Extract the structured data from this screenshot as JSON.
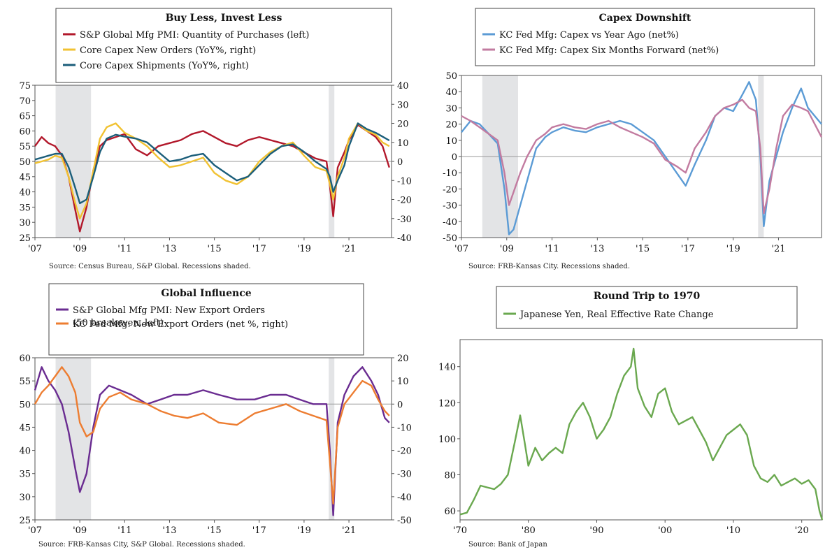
{
  "chart_data": [
    {
      "type": "line",
      "title": "Buy Less, Invest Less",
      "source": "Source: Census Bureau, S&P Global. Recessions shaded.",
      "x_ticks": [
        "'07",
        "'09",
        "'11",
        "'13",
        "'15",
        "'17",
        "'19",
        "'21"
      ],
      "x_tick_values": [
        2007,
        2009,
        2011,
        2013,
        2015,
        2017,
        2019,
        2021
      ],
      "xlim": [
        2007,
        2022.9
      ],
      "ylim_left": [
        25,
        75
      ],
      "yticks_left": [
        "75",
        "70",
        "65",
        "60",
        "55",
        "50",
        "45",
        "40",
        "35",
        "30",
        "25"
      ],
      "yticks_left_values": [
        75,
        70,
        65,
        60,
        55,
        50,
        45,
        40,
        35,
        30,
        25
      ],
      "ylim_right": [
        -40,
        40
      ],
      "yticks_right": [
        "40",
        "30",
        "20",
        "10",
        "0",
        "-10",
        "-20",
        "-30",
        "-40"
      ],
      "yticks_right_values": [
        40,
        30,
        20,
        10,
        0,
        -10,
        -20,
        -30,
        -40
      ],
      "zero_line_right": 0,
      "recessions": [
        [
          2007.92,
          2009.5
        ],
        [
          2020.1,
          2020.35
        ]
      ],
      "series": [
        {
          "name": "S&P Global Mfg PMI: Quantity of Purchases (left)",
          "axis": "left",
          "color": "#b2182b",
          "x": [
            2007,
            2007.3,
            2007.6,
            2007.9,
            2008.2,
            2008.5,
            2008.8,
            2009.0,
            2009.3,
            2009.6,
            2009.9,
            2010.2,
            2010.6,
            2011.0,
            2011.5,
            2012.0,
            2012.5,
            2013.0,
            2013.5,
            2014.0,
            2014.5,
            2015.0,
            2015.5,
            2016.0,
            2016.5,
            2017.0,
            2017.5,
            2018.0,
            2018.5,
            2019.0,
            2019.5,
            2020.0,
            2020.15,
            2020.3,
            2020.5,
            2020.8,
            2021.0,
            2021.4,
            2021.8,
            2022.2,
            2022.5,
            2022.8
          ],
          "values": [
            55,
            58,
            56,
            55,
            52,
            45,
            34,
            27,
            35,
            47,
            55,
            57,
            58,
            59,
            54,
            52,
            55,
            56,
            57,
            59,
            60,
            58,
            56,
            55,
            57,
            58,
            57,
            56,
            55,
            53,
            51,
            50,
            42,
            32,
            48,
            53,
            57,
            62,
            60,
            58,
            55,
            48
          ]
        },
        {
          "name": "Core Capex New Orders (YoY%, right)",
          "axis": "right",
          "color": "#f1c232",
          "x": [
            2007,
            2007.3,
            2007.6,
            2007.9,
            2008.2,
            2008.5,
            2008.8,
            2009.0,
            2009.3,
            2009.6,
            2009.9,
            2010.2,
            2010.6,
            2011.0,
            2011.5,
            2012.0,
            2012.5,
            2013.0,
            2013.5,
            2014.0,
            2014.5,
            2015.0,
            2015.5,
            2016.0,
            2016.5,
            2017.0,
            2017.5,
            2018.0,
            2018.5,
            2019.0,
            2019.5,
            2020.0,
            2020.15,
            2020.3,
            2020.5,
            2020.8,
            2021.0,
            2021.4,
            2021.8,
            2022.2,
            2022.5,
            2022.8
          ],
          "values": [
            -1,
            0,
            1,
            3,
            2,
            -8,
            -22,
            -30,
            -22,
            -5,
            12,
            18,
            20,
            15,
            12,
            8,
            2,
            -3,
            -2,
            0,
            2,
            -6,
            -10,
            -12,
            -8,
            0,
            5,
            8,
            10,
            3,
            -3,
            -5,
            -12,
            -20,
            -8,
            2,
            12,
            20,
            16,
            14,
            10,
            8
          ]
        },
        {
          "name": "Core Capex Shipments (YoY%, right)",
          "axis": "right",
          "color": "#1b5e7a",
          "x": [
            2007,
            2007.3,
            2007.6,
            2007.9,
            2008.2,
            2008.5,
            2008.8,
            2009.0,
            2009.3,
            2009.6,
            2009.9,
            2010.2,
            2010.6,
            2011.0,
            2011.5,
            2012.0,
            2012.5,
            2013.0,
            2013.5,
            2014.0,
            2014.5,
            2015.0,
            2015.5,
            2016.0,
            2016.5,
            2017.0,
            2017.5,
            2018.0,
            2018.5,
            2019.0,
            2019.5,
            2020.0,
            2020.15,
            2020.3,
            2020.5,
            2020.8,
            2021.0,
            2021.4,
            2021.8,
            2022.2,
            2022.5,
            2022.8
          ],
          "values": [
            1,
            2,
            3,
            4,
            4,
            -3,
            -14,
            -22,
            -20,
            -8,
            5,
            12,
            14,
            13,
            12,
            10,
            5,
            0,
            1,
            3,
            4,
            -2,
            -6,
            -10,
            -8,
            -2,
            4,
            8,
            9,
            5,
            0,
            -4,
            -8,
            -16,
            -10,
            -2,
            8,
            20,
            17,
            15,
            13,
            11
          ]
        }
      ]
    },
    {
      "type": "line",
      "title": "Capex Downshift",
      "source": "Source: FRB-Kansas City. Recessions shaded.",
      "x_ticks": [
        "'07",
        "'09",
        "'11",
        "'13",
        "'15",
        "'17",
        "'19",
        "'21"
      ],
      "x_tick_values": [
        2007,
        2009,
        2011,
        2013,
        2015,
        2017,
        2019,
        2021
      ],
      "xlim": [
        2007,
        2022.9
      ],
      "ylim": [
        -50,
        50
      ],
      "yticks": [
        "50",
        "40",
        "30",
        "20",
        "10",
        "0",
        "-10",
        "-20",
        "-30",
        "-40",
        "-50"
      ],
      "yticks_values": [
        50,
        40,
        30,
        20,
        10,
        0,
        -10,
        -20,
        -30,
        -40,
        -50
      ],
      "zero_line": 0,
      "recessions": [
        [
          2007.92,
          2009.5
        ],
        [
          2020.1,
          2020.35
        ]
      ],
      "series": [
        {
          "name": "KC Fed Mfg: Capex vs Year Ago (net%)",
          "color": "#5b9bd5",
          "x": [
            2007,
            2007.4,
            2007.8,
            2008.2,
            2008.6,
            2008.9,
            2009.1,
            2009.3,
            2009.6,
            2009.9,
            2010.3,
            2010.7,
            2011.0,
            2011.5,
            2012.0,
            2012.5,
            2013.0,
            2013.5,
            2014.0,
            2014.5,
            2015.0,
            2015.5,
            2016.0,
            2016.5,
            2016.9,
            2017.3,
            2017.8,
            2018.2,
            2018.6,
            2019.0,
            2019.4,
            2019.7,
            2020.0,
            2020.2,
            2020.35,
            2020.6,
            2020.9,
            2021.2,
            2021.6,
            2022.0,
            2022.3,
            2022.6,
            2022.9
          ],
          "values": [
            15,
            22,
            20,
            14,
            8,
            -20,
            -48,
            -45,
            -30,
            -15,
            5,
            12,
            15,
            18,
            16,
            15,
            18,
            20,
            22,
            20,
            15,
            10,
            0,
            -10,
            -18,
            -5,
            10,
            25,
            30,
            28,
            38,
            46,
            35,
            0,
            -43,
            -15,
            0,
            15,
            30,
            42,
            30,
            25,
            20
          ]
        },
        {
          "name": "KC Fed Mfg: Capex Six Months Forward (net%)",
          "color": "#c27ba0",
          "x": [
            2007,
            2007.4,
            2007.8,
            2008.2,
            2008.6,
            2008.9,
            2009.1,
            2009.3,
            2009.6,
            2009.9,
            2010.3,
            2010.7,
            2011.0,
            2011.5,
            2012.0,
            2012.5,
            2013.0,
            2013.5,
            2014.0,
            2014.5,
            2015.0,
            2015.5,
            2016.0,
            2016.5,
            2016.9,
            2017.3,
            2017.8,
            2018.2,
            2018.6,
            2019.0,
            2019.4,
            2019.7,
            2020.0,
            2020.2,
            2020.35,
            2020.6,
            2020.9,
            2021.2,
            2021.6,
            2022.0,
            2022.3,
            2022.6,
            2022.9
          ],
          "values": [
            25,
            22,
            18,
            14,
            10,
            -10,
            -30,
            -22,
            -10,
            0,
            10,
            14,
            18,
            20,
            18,
            17,
            20,
            22,
            18,
            15,
            12,
            8,
            -2,
            -6,
            -10,
            5,
            15,
            25,
            30,
            32,
            35,
            30,
            28,
            5,
            -35,
            -20,
            5,
            25,
            32,
            30,
            28,
            20,
            12
          ]
        }
      ]
    },
    {
      "type": "line",
      "title": "Global Influence",
      "source": "Source: FRB-Kansas City, S&P Global. Recessions shaded.",
      "x_ticks": [
        "'07",
        "'09",
        "'11",
        "'13",
        "'15",
        "'17",
        "'19",
        "'21"
      ],
      "x_tick_values": [
        2007,
        2009,
        2011,
        2013,
        2015,
        2017,
        2019,
        2021
      ],
      "xlim": [
        2007,
        2022.9
      ],
      "ylim_left": [
        25,
        60
      ],
      "yticks_left": [
        "60",
        "55",
        "50",
        "45",
        "40",
        "35",
        "30",
        "25"
      ],
      "yticks_left_values": [
        60,
        55,
        50,
        45,
        40,
        35,
        30,
        25
      ],
      "ylim_right": [
        -50,
        20
      ],
      "yticks_right": [
        "20",
        "10",
        "0",
        "-10",
        "-20",
        "-30",
        "-40",
        "-50"
      ],
      "yticks_right_values": [
        20,
        10,
        0,
        -10,
        -20,
        -30,
        -40,
        -50
      ],
      "zero_line_right": 0,
      "recessions": [
        [
          2007.92,
          2009.5
        ],
        [
          2020.1,
          2020.35
        ]
      ],
      "series": [
        {
          "name": "S&P Global Mfg PMI: New Export Orders",
          "name_line2": "(50 breakeven, left)",
          "axis": "left",
          "color": "#6a2c91",
          "x": [
            2007,
            2007.3,
            2007.6,
            2007.9,
            2008.2,
            2008.5,
            2008.8,
            2009.0,
            2009.3,
            2009.6,
            2009.9,
            2010.3,
            2010.8,
            2011.3,
            2012.0,
            2012.6,
            2013.2,
            2013.8,
            2014.5,
            2015.2,
            2016.0,
            2016.8,
            2017.5,
            2018.2,
            2018.8,
            2019.4,
            2020.0,
            2020.15,
            2020.3,
            2020.5,
            2020.8,
            2021.2,
            2021.6,
            2022.0,
            2022.3,
            2022.6,
            2022.8
          ],
          "values": [
            53,
            58,
            55,
            53,
            50,
            44,
            36,
            31,
            35,
            45,
            52,
            54,
            53,
            52,
            50,
            51,
            52,
            52,
            53,
            52,
            51,
            51,
            52,
            52,
            51,
            50,
            50,
            40,
            26,
            46,
            52,
            56,
            58,
            55,
            52,
            47,
            46
          ]
        },
        {
          "name": "KC Fed Mfg: New Export Orders (net %, right)",
          "axis": "right",
          "color": "#ed7d31",
          "x": [
            2007,
            2007.3,
            2007.6,
            2007.9,
            2008.2,
            2008.5,
            2008.8,
            2009.0,
            2009.3,
            2009.6,
            2009.9,
            2010.3,
            2010.8,
            2011.3,
            2012.0,
            2012.6,
            2013.2,
            2013.8,
            2014.5,
            2015.2,
            2016.0,
            2016.8,
            2017.5,
            2018.2,
            2018.8,
            2019.4,
            2020.0,
            2020.15,
            2020.3,
            2020.5,
            2020.8,
            2021.2,
            2021.6,
            2022.0,
            2022.3,
            2022.6,
            2022.8
          ],
          "values": [
            0,
            5,
            8,
            12,
            16,
            12,
            5,
            -8,
            -14,
            -12,
            -2,
            3,
            5,
            2,
            0,
            -3,
            -5,
            -6,
            -4,
            -8,
            -9,
            -4,
            -2,
            0,
            -3,
            -5,
            -7,
            -25,
            -43,
            -10,
            0,
            5,
            10,
            8,
            2,
            -3,
            -5
          ]
        }
      ]
    },
    {
      "type": "line",
      "title": "Round Trip to 1970",
      "source": "Source: Bank of Japan",
      "x_ticks": [
        "'70",
        "'80",
        "'90",
        "'00",
        "'10",
        "'20"
      ],
      "x_tick_values": [
        1970,
        1980,
        1990,
        2000,
        2010,
        2020
      ],
      "xlim": [
        1970,
        2023
      ],
      "ylim": [
        55,
        155
      ],
      "yticks": [
        "140",
        "120",
        "100",
        "80",
        "60"
      ],
      "yticks_values": [
        140,
        120,
        100,
        80,
        60
      ],
      "series": [
        {
          "name": "Japanese Yen, Real Effective Rate Change",
          "color": "#6aa84f",
          "x": [
            1970,
            1971,
            1972,
            1973,
            1974,
            1975,
            1976,
            1977,
            1978,
            1978.8,
            1979.5,
            1980,
            1981,
            1982,
            1983,
            1984,
            1985,
            1986,
            1987,
            1988,
            1989,
            1990,
            1991,
            1992,
            1993,
            1994,
            1995,
            1995.4,
            1996,
            1997,
            1998,
            1999,
            2000,
            2001,
            2002,
            2003,
            2004,
            2005,
            2006,
            2007,
            2008,
            2009,
            2010,
            2011,
            2012,
            2013,
            2014,
            2015,
            2016,
            2017,
            2018,
            2019,
            2020,
            2021,
            2022,
            2022.6,
            2023
          ],
          "values": [
            58,
            59,
            66,
            74,
            73,
            72,
            75,
            80,
            98,
            113,
            97,
            85,
            95,
            88,
            92,
            95,
            92,
            108,
            115,
            120,
            112,
            100,
            105,
            112,
            125,
            135,
            140,
            150,
            128,
            118,
            112,
            125,
            128,
            115,
            108,
            110,
            112,
            105,
            98,
            88,
            95,
            102,
            105,
            108,
            102,
            85,
            78,
            76,
            80,
            74,
            76,
            78,
            75,
            77,
            72,
            60,
            55
          ]
        }
      ]
    }
  ]
}
